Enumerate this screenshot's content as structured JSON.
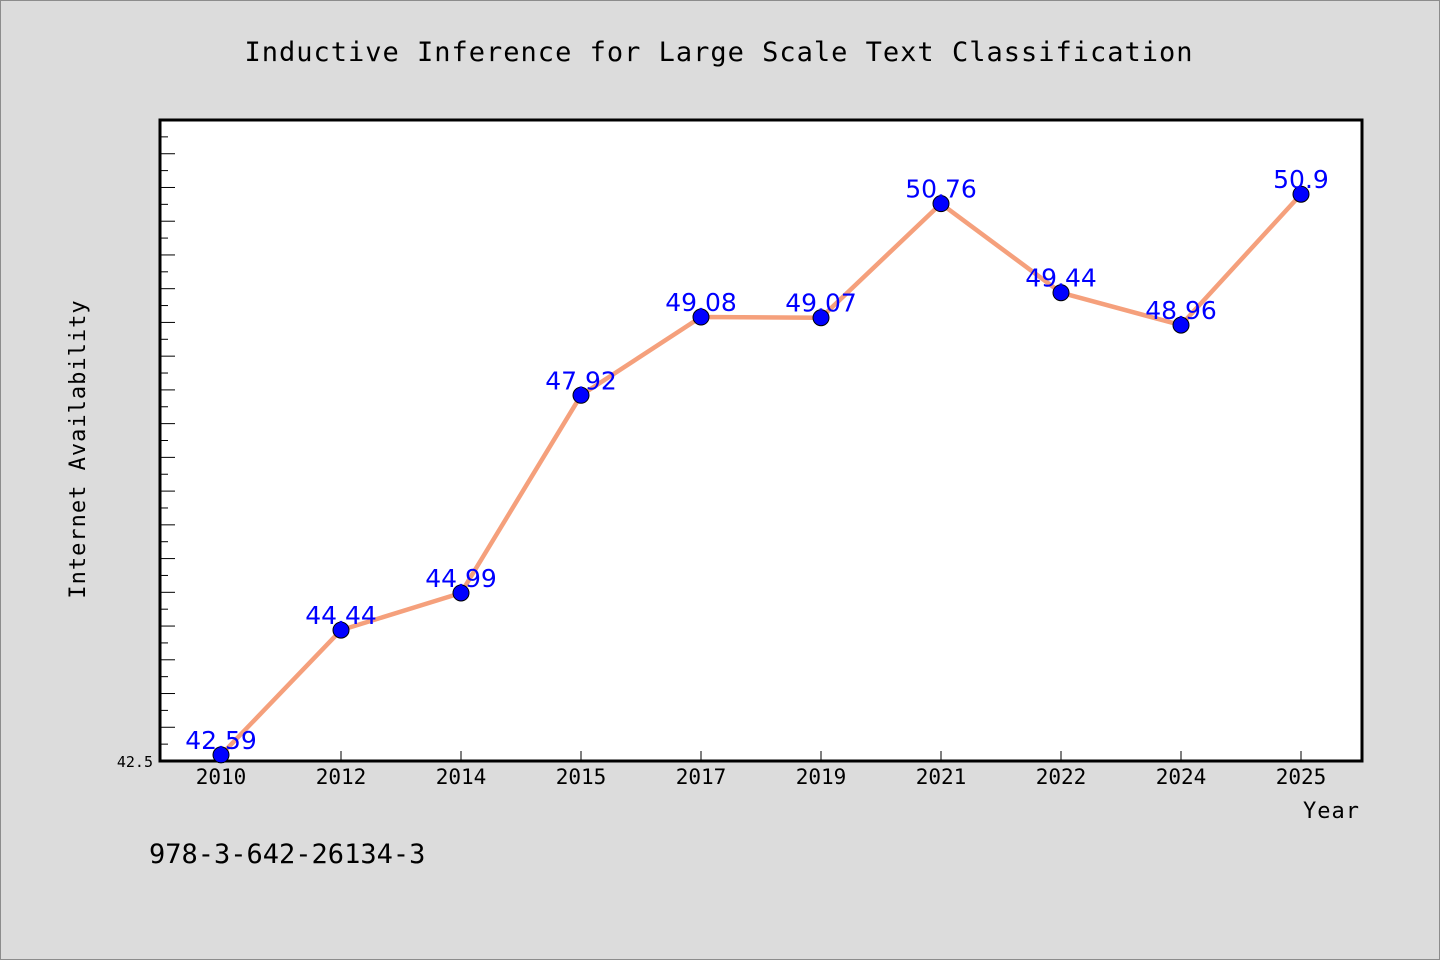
{
  "chart_data": {
    "type": "line",
    "title": "Inductive Inference for Large Scale Text Classification",
    "xlabel": "Year",
    "ylabel": "Internet Availability",
    "categories": [
      "2010",
      "2012",
      "2014",
      "2015",
      "2017",
      "2019",
      "2021",
      "2022",
      "2024",
      "2025"
    ],
    "series": [
      {
        "values": [
          42.59,
          44.44,
          44.99,
          47.92,
          49.08,
          49.07,
          50.76,
          49.44,
          48.96,
          50.9
        ]
      }
    ],
    "data_labels": [
      "42.59",
      "44.44",
      "44.99",
      "47.92",
      "49.08",
      "49.07",
      "50.76",
      "49.44",
      "48.96",
      "50.9"
    ],
    "ylim": [
      42.5,
      52.0
    ],
    "y_min_label": "42.5",
    "grid": false,
    "line_color": "#f5a07c",
    "marker_color": "#0000ff",
    "label_color": "#0000ff"
  },
  "footer": {
    "isbn": "978-3-642-26134-3"
  }
}
